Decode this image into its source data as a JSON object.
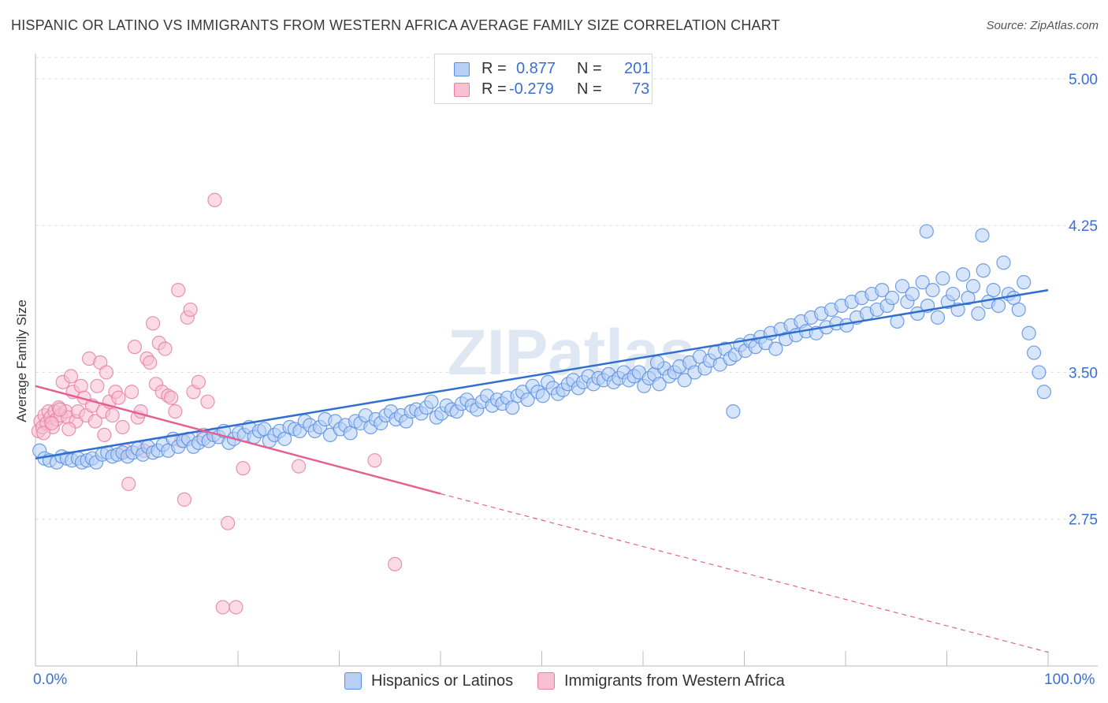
{
  "title": "HISPANIC OR LATINO VS IMMIGRANTS FROM WESTERN AFRICA AVERAGE FAMILY SIZE CORRELATION CHART",
  "source": "Source: ZipAtlas.com",
  "watermark": "ZIPatlas",
  "colors": {
    "blue": "#5b8fe0",
    "blue_fill": "#b7cff5",
    "blue_line": "#2f6fd0",
    "pink": "#e87fa5",
    "pink_fill": "#f8c0d2",
    "pink_line": "#e4608f",
    "tick_text": "#3b6fd4",
    "grid": "#dddddd"
  },
  "legend": {
    "rows": [
      {
        "r_label": "R =",
        "r_value": "0.877",
        "n_label": "N =",
        "n_value": "201"
      },
      {
        "r_label": "R =",
        "r_value": "-0.279",
        "n_label": "N =",
        "n_value": "73"
      }
    ]
  },
  "chart_data": {
    "type": "scatter",
    "title": "HISPANIC OR LATINO VS IMMIGRANTS FROM WESTERN AFRICA AVERAGE FAMILY SIZE CORRELATION CHART",
    "xlabel": "",
    "ylabel": "Average Family Size",
    "xlim": [
      0,
      100
    ],
    "ylim": [
      2.0,
      5.1
    ],
    "x_tick_labels": [
      "0.0%",
      "100.0%"
    ],
    "y_ticks": [
      2.75,
      3.5,
      4.25,
      5.0
    ],
    "y_tick_labels": [
      "2.75",
      "3.50",
      "4.25",
      "5.00"
    ],
    "grid": true,
    "legend_position": "top-center",
    "series": [
      {
        "name": "Hispanics or Latinos",
        "color": "#5b8fe0",
        "trend": {
          "x": [
            0,
            100
          ],
          "y": [
            3.06,
            3.92
          ]
        },
        "points": [
          [
            0.4,
            3.1
          ],
          [
            0.9,
            3.06
          ],
          [
            1.4,
            3.05
          ],
          [
            2.1,
            3.04
          ],
          [
            2.6,
            3.07
          ],
          [
            3.1,
            3.06
          ],
          [
            3.6,
            3.05
          ],
          [
            4.2,
            3.06
          ],
          [
            4.6,
            3.04
          ],
          [
            5.1,
            3.05
          ],
          [
            5.6,
            3.06
          ],
          [
            6.0,
            3.04
          ],
          [
            6.6,
            3.08
          ],
          [
            7.1,
            3.09
          ],
          [
            7.6,
            3.07
          ],
          [
            8.1,
            3.08
          ],
          [
            8.6,
            3.09
          ],
          [
            9.1,
            3.07
          ],
          [
            9.6,
            3.09
          ],
          [
            10.1,
            3.11
          ],
          [
            10.6,
            3.08
          ],
          [
            11.1,
            3.12
          ],
          [
            11.6,
            3.09
          ],
          [
            12.1,
            3.1
          ],
          [
            12.6,
            3.13
          ],
          [
            13.1,
            3.1
          ],
          [
            13.6,
            3.16
          ],
          [
            14.1,
            3.12
          ],
          [
            14.6,
            3.15
          ],
          [
            15.1,
            3.16
          ],
          [
            15.6,
            3.12
          ],
          [
            16.1,
            3.14
          ],
          [
            16.6,
            3.16
          ],
          [
            17.1,
            3.15
          ],
          [
            17.6,
            3.18
          ],
          [
            18.1,
            3.17
          ],
          [
            18.6,
            3.2
          ],
          [
            19.1,
            3.14
          ],
          [
            19.6,
            3.16
          ],
          [
            20.1,
            3.19
          ],
          [
            20.6,
            3.18
          ],
          [
            21.1,
            3.22
          ],
          [
            21.6,
            3.17
          ],
          [
            22.1,
            3.2
          ],
          [
            22.6,
            3.21
          ],
          [
            23.1,
            3.15
          ],
          [
            23.6,
            3.18
          ],
          [
            24.1,
            3.2
          ],
          [
            24.6,
            3.16
          ],
          [
            25.1,
            3.22
          ],
          [
            25.6,
            3.21
          ],
          [
            26.1,
            3.2
          ],
          [
            26.6,
            3.25
          ],
          [
            27.1,
            3.23
          ],
          [
            27.6,
            3.2
          ],
          [
            28.1,
            3.22
          ],
          [
            28.6,
            3.26
          ],
          [
            29.1,
            3.18
          ],
          [
            29.6,
            3.25
          ],
          [
            30.1,
            3.21
          ],
          [
            30.6,
            3.23
          ],
          [
            31.1,
            3.19
          ],
          [
            31.6,
            3.25
          ],
          [
            32.1,
            3.24
          ],
          [
            32.6,
            3.28
          ],
          [
            33.1,
            3.22
          ],
          [
            33.6,
            3.26
          ],
          [
            34.1,
            3.24
          ],
          [
            34.6,
            3.28
          ],
          [
            35.1,
            3.3
          ],
          [
            35.6,
            3.26
          ],
          [
            36.1,
            3.28
          ],
          [
            36.6,
            3.25
          ],
          [
            37.1,
            3.3
          ],
          [
            37.6,
            3.31
          ],
          [
            38.1,
            3.29
          ],
          [
            38.6,
            3.32
          ],
          [
            39.1,
            3.35
          ],
          [
            39.6,
            3.27
          ],
          [
            40.1,
            3.29
          ],
          [
            40.6,
            3.33
          ],
          [
            41.1,
            3.31
          ],
          [
            41.6,
            3.3
          ],
          [
            42.1,
            3.34
          ],
          [
            42.6,
            3.36
          ],
          [
            43.1,
            3.33
          ],
          [
            43.6,
            3.31
          ],
          [
            44.1,
            3.35
          ],
          [
            44.6,
            3.38
          ],
          [
            45.1,
            3.33
          ],
          [
            45.6,
            3.36
          ],
          [
            46.1,
            3.34
          ],
          [
            46.6,
            3.37
          ],
          [
            47.1,
            3.32
          ],
          [
            47.6,
            3.38
          ],
          [
            48.1,
            3.4
          ],
          [
            48.6,
            3.36
          ],
          [
            49.1,
            3.43
          ],
          [
            49.6,
            3.4
          ],
          [
            50.1,
            3.38
          ],
          [
            50.6,
            3.45
          ],
          [
            51.1,
            3.42
          ],
          [
            51.6,
            3.39
          ],
          [
            52.1,
            3.41
          ],
          [
            52.6,
            3.44
          ],
          [
            53.1,
            3.46
          ],
          [
            53.6,
            3.42
          ],
          [
            54.1,
            3.45
          ],
          [
            54.6,
            3.48
          ],
          [
            55.1,
            3.44
          ],
          [
            55.6,
            3.47
          ],
          [
            56.1,
            3.46
          ],
          [
            56.6,
            3.49
          ],
          [
            57.1,
            3.45
          ],
          [
            57.6,
            3.47
          ],
          [
            58.1,
            3.5
          ],
          [
            58.6,
            3.46
          ],
          [
            59.1,
            3.48
          ],
          [
            59.6,
            3.5
          ],
          [
            60.1,
            3.43
          ],
          [
            60.6,
            3.47
          ],
          [
            61.1,
            3.49
          ],
          [
            61.6,
            3.44
          ],
          [
            62.1,
            3.52
          ],
          [
            62.6,
            3.48
          ],
          [
            63.1,
            3.5
          ],
          [
            63.6,
            3.53
          ],
          [
            64.1,
            3.46
          ],
          [
            64.6,
            3.55
          ],
          [
            65.1,
            3.5
          ],
          [
            65.6,
            3.58
          ],
          [
            66.1,
            3.52
          ],
          [
            66.6,
            3.56
          ],
          [
            67.1,
            3.6
          ],
          [
            67.6,
            3.54
          ],
          [
            68.1,
            3.62
          ],
          [
            68.6,
            3.57
          ],
          [
            69.1,
            3.59
          ],
          [
            69.6,
            3.64
          ],
          [
            70.1,
            3.61
          ],
          [
            70.6,
            3.66
          ],
          [
            71.1,
            3.63
          ],
          [
            71.6,
            3.68
          ],
          [
            72.1,
            3.65
          ],
          [
            72.6,
            3.7
          ],
          [
            73.1,
            3.62
          ],
          [
            73.6,
            3.72
          ],
          [
            74.1,
            3.67
          ],
          [
            74.6,
            3.74
          ],
          [
            75.1,
            3.69
          ],
          [
            75.6,
            3.76
          ],
          [
            76.1,
            3.71
          ],
          [
            76.6,
            3.78
          ],
          [
            77.1,
            3.7
          ],
          [
            77.6,
            3.8
          ],
          [
            78.1,
            3.73
          ],
          [
            78.6,
            3.82
          ],
          [
            79.1,
            3.75
          ],
          [
            79.6,
            3.84
          ],
          [
            80.1,
            3.74
          ],
          [
            80.6,
            3.86
          ],
          [
            81.1,
            3.78
          ],
          [
            81.6,
            3.88
          ],
          [
            82.1,
            3.8
          ],
          [
            82.6,
            3.9
          ],
          [
            83.1,
            3.82
          ],
          [
            83.6,
            3.92
          ],
          [
            84.1,
            3.84
          ],
          [
            84.6,
            3.88
          ],
          [
            85.1,
            3.76
          ],
          [
            85.6,
            3.94
          ],
          [
            86.1,
            3.86
          ],
          [
            86.6,
            3.9
          ],
          [
            87.1,
            3.8
          ],
          [
            87.6,
            3.96
          ],
          [
            88.1,
            3.84
          ],
          [
            88.6,
            3.92
          ],
          [
            89.1,
            3.78
          ],
          [
            89.6,
            3.98
          ],
          [
            90.1,
            3.86
          ],
          [
            90.6,
            3.9
          ],
          [
            91.1,
            3.82
          ],
          [
            91.6,
            4.0
          ],
          [
            92.1,
            3.88
          ],
          [
            92.6,
            3.94
          ],
          [
            93.1,
            3.8
          ],
          [
            93.6,
            4.02
          ],
          [
            94.1,
            3.86
          ],
          [
            94.6,
            3.92
          ],
          [
            95.1,
            3.84
          ],
          [
            95.6,
            4.06
          ],
          [
            96.1,
            3.9
          ],
          [
            96.6,
            3.88
          ],
          [
            97.1,
            3.82
          ],
          [
            97.6,
            3.96
          ],
          [
            98.1,
            3.7
          ],
          [
            98.6,
            3.6
          ],
          [
            99.1,
            3.5
          ],
          [
            99.6,
            3.4
          ],
          [
            61.4,
            3.55
          ],
          [
            68.9,
            3.3
          ],
          [
            88.0,
            4.22
          ],
          [
            93.5,
            4.2
          ]
        ]
      },
      {
        "name": "Immigrants from Western Africa",
        "color": "#e87fa5",
        "trend": {
          "x": [
            0,
            40
          ],
          "y": [
            3.43,
            2.88
          ]
        },
        "trend_dashed": {
          "x": [
            40,
            100
          ],
          "y": [
            2.88,
            2.07
          ]
        },
        "points": [
          [
            0.3,
            3.2
          ],
          [
            0.5,
            3.25
          ],
          [
            0.7,
            3.22
          ],
          [
            0.9,
            3.28
          ],
          [
            1.1,
            3.24
          ],
          [
            1.3,
            3.3
          ],
          [
            1.5,
            3.27
          ],
          [
            1.7,
            3.22
          ],
          [
            1.9,
            3.3
          ],
          [
            2.1,
            3.26
          ],
          [
            2.3,
            3.32
          ],
          [
            2.5,
            3.28
          ],
          [
            2.7,
            3.45
          ],
          [
            3.0,
            3.3
          ],
          [
            3.2,
            3.27
          ],
          [
            3.5,
            3.48
          ],
          [
            3.7,
            3.4
          ],
          [
            4.0,
            3.25
          ],
          [
            4.2,
            3.3
          ],
          [
            4.5,
            3.43
          ],
          [
            4.8,
            3.37
          ],
          [
            5.0,
            3.28
          ],
          [
            5.3,
            3.57
          ],
          [
            5.6,
            3.33
          ],
          [
            5.9,
            3.25
          ],
          [
            6.1,
            3.43
          ],
          [
            6.4,
            3.55
          ],
          [
            6.7,
            3.3
          ],
          [
            7.0,
            3.5
          ],
          [
            7.3,
            3.35
          ],
          [
            7.6,
            3.28
          ],
          [
            7.9,
            3.4
          ],
          [
            8.2,
            3.37
          ],
          [
            8.6,
            3.22
          ],
          [
            8.9,
            3.1
          ],
          [
            9.2,
            2.93
          ],
          [
            9.5,
            3.4
          ],
          [
            9.8,
            3.63
          ],
          [
            10.1,
            3.27
          ],
          [
            10.4,
            3.3
          ],
          [
            10.7,
            3.1
          ],
          [
            11.0,
            3.57
          ],
          [
            11.3,
            3.55
          ],
          [
            11.6,
            3.75
          ],
          [
            11.9,
            3.44
          ],
          [
            12.2,
            3.65
          ],
          [
            12.5,
            3.4
          ],
          [
            12.8,
            3.62
          ],
          [
            13.1,
            3.38
          ],
          [
            13.4,
            3.37
          ],
          [
            13.8,
            3.3
          ],
          [
            14.1,
            3.92
          ],
          [
            14.4,
            3.15
          ],
          [
            14.7,
            2.85
          ],
          [
            15.0,
            3.78
          ],
          [
            15.3,
            3.82
          ],
          [
            15.6,
            3.4
          ],
          [
            16.1,
            3.45
          ],
          [
            16.6,
            3.18
          ],
          [
            17.0,
            3.35
          ],
          [
            17.7,
            4.38
          ],
          [
            18.5,
            2.3
          ],
          [
            19.0,
            2.73
          ],
          [
            19.8,
            2.3
          ],
          [
            20.5,
            3.01
          ],
          [
            26.0,
            3.02
          ],
          [
            33.5,
            3.05
          ],
          [
            35.5,
            2.52
          ],
          [
            0.8,
            3.19
          ],
          [
            1.6,
            3.24
          ],
          [
            2.4,
            3.31
          ],
          [
            3.3,
            3.21
          ],
          [
            6.8,
            3.18
          ]
        ]
      }
    ]
  },
  "bottom_legend": {
    "items": [
      {
        "label": "Hispanics or Latinos"
      },
      {
        "label": "Immigrants from Western Africa"
      }
    ]
  },
  "axis": {
    "y_label": "Average Family Size",
    "x_left": "0.0%",
    "x_right": "100.0%"
  }
}
